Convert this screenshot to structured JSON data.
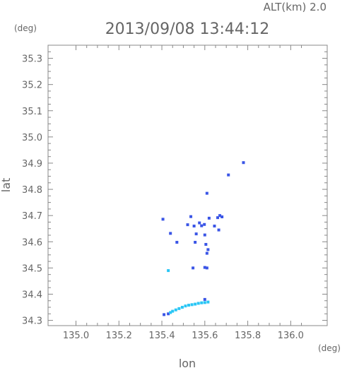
{
  "header": {
    "altitude_label": "ALT(km) 2.0",
    "timestamp": "2013/09/08 13:44:12"
  },
  "chart_data": {
    "type": "scatter",
    "xlabel": "lon",
    "ylabel": "lat",
    "x_unit": "(deg)",
    "y_unit": "(deg)",
    "xlim": [
      134.87,
      136.17
    ],
    "ylim": [
      34.28,
      35.35
    ],
    "xticks": [
      "135.0",
      "135.2",
      "135.4",
      "135.6",
      "135.8",
      "136.0"
    ],
    "yticks": [
      "34.3",
      "34.4",
      "34.5",
      "34.6",
      "34.7",
      "34.8",
      "34.9",
      "35.0",
      "35.1",
      "35.2",
      "35.3"
    ],
    "grid": false,
    "colors": {
      "strong": "#3a55e6",
      "light": "#29c6f5",
      "axis": "#888888",
      "text": "#666666"
    },
    "series": [
      {
        "color": "#3a55e6",
        "points": [
          [
            135.405,
            34.686
          ],
          [
            135.44,
            34.632
          ],
          [
            135.47,
            34.598
          ],
          [
            135.52,
            34.665
          ],
          [
            135.535,
            34.696
          ],
          [
            135.55,
            34.66
          ],
          [
            135.56,
            34.63
          ],
          [
            135.555,
            34.598
          ],
          [
            135.575,
            34.672
          ],
          [
            135.585,
            34.661
          ],
          [
            135.598,
            34.666
          ],
          [
            135.615,
            34.57
          ],
          [
            135.61,
            34.556
          ],
          [
            135.6,
            34.502
          ],
          [
            135.61,
            34.5
          ],
          [
            135.545,
            34.5
          ],
          [
            135.6,
            34.626
          ],
          [
            135.605,
            34.59
          ],
          [
            135.62,
            34.69
          ],
          [
            135.66,
            34.692
          ],
          [
            135.67,
            34.7
          ],
          [
            135.68,
            34.695
          ],
          [
            135.665,
            34.645
          ],
          [
            135.645,
            34.66
          ],
          [
            135.61,
            34.785
          ],
          [
            135.71,
            34.855
          ],
          [
            135.78,
            34.902
          ],
          [
            135.6,
            34.38
          ],
          [
            135.41,
            34.322
          ],
          [
            135.43,
            34.325
          ]
        ]
      },
      {
        "color": "#29c6f5",
        "points": [
          [
            135.43,
            34.49
          ],
          [
            135.44,
            34.33
          ],
          [
            135.45,
            34.335
          ],
          [
            135.465,
            34.34
          ],
          [
            135.48,
            34.345
          ],
          [
            135.495,
            34.35
          ],
          [
            135.51,
            34.355
          ],
          [
            135.525,
            34.358
          ],
          [
            135.54,
            34.36
          ],
          [
            135.555,
            34.362
          ],
          [
            135.57,
            34.365
          ],
          [
            135.585,
            34.367
          ],
          [
            135.6,
            34.368
          ],
          [
            135.615,
            34.37
          ]
        ]
      }
    ]
  }
}
